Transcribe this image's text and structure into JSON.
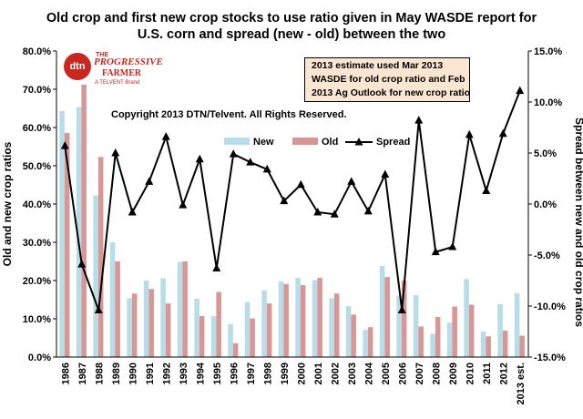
{
  "chart_data": {
    "type": "bar",
    "title_lines": [
      "Old crop and first new crop stocks to use ratio given in May WASDE  report for",
      "U.S. corn and spread (new - old) between the two"
    ],
    "ylabel_left": "Old and new crop ratios",
    "ylabel_right": "Spread between new and old crop ratios",
    "categories": [
      "1986",
      "1987",
      "1988",
      "1989",
      "1990",
      "1991",
      "1992",
      "1993",
      "1994",
      "1995",
      "1996",
      "1997",
      "1998",
      "1999",
      "2000",
      "2001",
      "2002",
      "2003",
      "2004",
      "2005",
      "2006",
      "2007",
      "2008",
      "2009",
      "2010",
      "2011",
      "2012",
      "2013 est."
    ],
    "ylim_left": [
      0,
      80
    ],
    "yticks_left": [
      "0.0%",
      "10.0%",
      "20.0%",
      "30.0%",
      "40.0%",
      "50.0%",
      "60.0%",
      "70.0%",
      "80.0%"
    ],
    "ylim_right": [
      -15,
      15
    ],
    "yticks_right": [
      "-15.0%",
      "-10.0%",
      "-5.0%",
      "0.0%",
      "5.0%",
      "10.0%",
      "15.0%"
    ],
    "series": [
      {
        "name": "New",
        "kind": "bar",
        "axis": "left",
        "color": "#b7dde8",
        "values": [
          64.3,
          65.3,
          42.3,
          30.0,
          15.4,
          20.0,
          20.6,
          24.9,
          15.3,
          10.7,
          8.6,
          14.4,
          17.4,
          19.8,
          20.7,
          20.1,
          15.4,
          13.3,
          7.1,
          23.8,
          16.0,
          16.2,
          6.1,
          9.0,
          20.4,
          6.7,
          13.8,
          16.7
        ]
      },
      {
        "name": "Old",
        "kind": "bar",
        "axis": "left",
        "color": "#d99694",
        "values": [
          58.6,
          71.2,
          52.3,
          25.0,
          16.6,
          17.8,
          14.0,
          25.0,
          10.7,
          17.0,
          3.6,
          10.1,
          14.0,
          19.1,
          18.8,
          20.7,
          16.6,
          11.1,
          7.8,
          20.9,
          20.0,
          8.0,
          10.5,
          13.2,
          13.7,
          5.4,
          6.9,
          5.6
        ]
      },
      {
        "name": "Spread",
        "kind": "line",
        "axis": "right",
        "color": "#000000",
        "values": [
          5.7,
          -5.9,
          -10.4,
          5.0,
          -0.8,
          2.2,
          6.6,
          -0.1,
          4.4,
          -6.3,
          4.9,
          4.1,
          3.4,
          0.3,
          1.9,
          -0.8,
          -1.0,
          2.2,
          -0.7,
          2.9,
          -10.4,
          8.2,
          -4.7,
          -4.2,
          6.8,
          1.3,
          6.9,
          11.1
        ]
      }
    ],
    "legend": {
      "placement": "upper-center",
      "labels": [
        "New",
        "Old",
        "Spread"
      ]
    },
    "grid": false
  },
  "note_box": {
    "lines": [
      "2013 estimate used Mar 2013",
      "WASDE for old crop ratio and Feb",
      "2013 Ag Outlook for new crop ratio"
    ]
  },
  "copyright": "Copyright 2013 DTN/Telvent. All Rights Reserved.",
  "logo": {
    "mark": "dtn",
    "the": "THE",
    "name_line1": "PROGRESSIVE",
    "name_line2": "FARMER",
    "brand": "A TELVENT Brand",
    "color": "#c8281e"
  }
}
